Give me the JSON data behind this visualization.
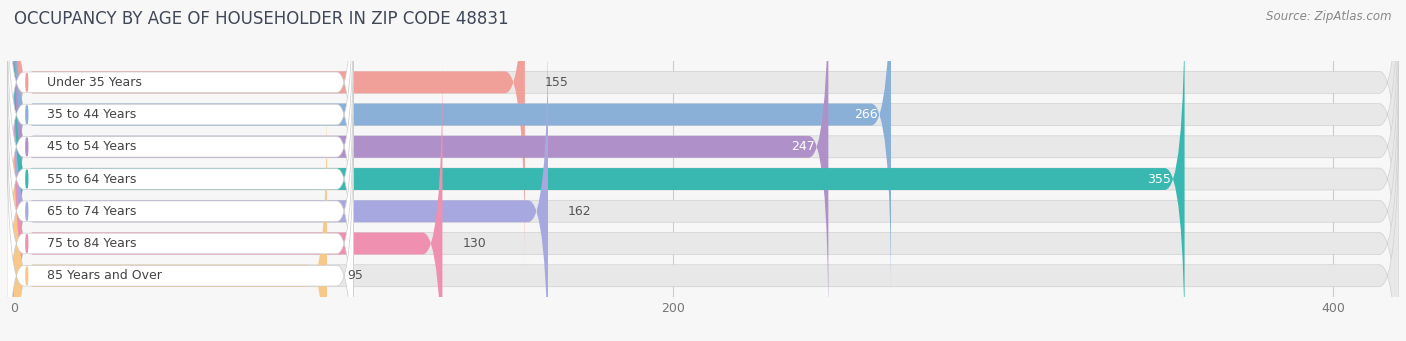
{
  "title": "OCCUPANCY BY AGE OF HOUSEHOLDER IN ZIP CODE 48831",
  "source": "Source: ZipAtlas.com",
  "categories": [
    "Under 35 Years",
    "35 to 44 Years",
    "45 to 54 Years",
    "55 to 64 Years",
    "65 to 74 Years",
    "75 to 84 Years",
    "85 Years and Over"
  ],
  "values": [
    155,
    266,
    247,
    355,
    162,
    130,
    95
  ],
  "bar_colors": [
    "#f0a098",
    "#8ab0d8",
    "#b090c8",
    "#38b8b0",
    "#a8a8e0",
    "#f090b0",
    "#f8c888"
  ],
  "label_pill_color": "#ffffff",
  "bg_bar_color": "#e8e8e8",
  "xlim_max": 420,
  "xticks": [
    0,
    200,
    400
  ],
  "bg_color": "#f7f7f7",
  "title_fontsize": 12,
  "source_fontsize": 8.5,
  "label_fontsize": 9,
  "value_fontsize": 9
}
